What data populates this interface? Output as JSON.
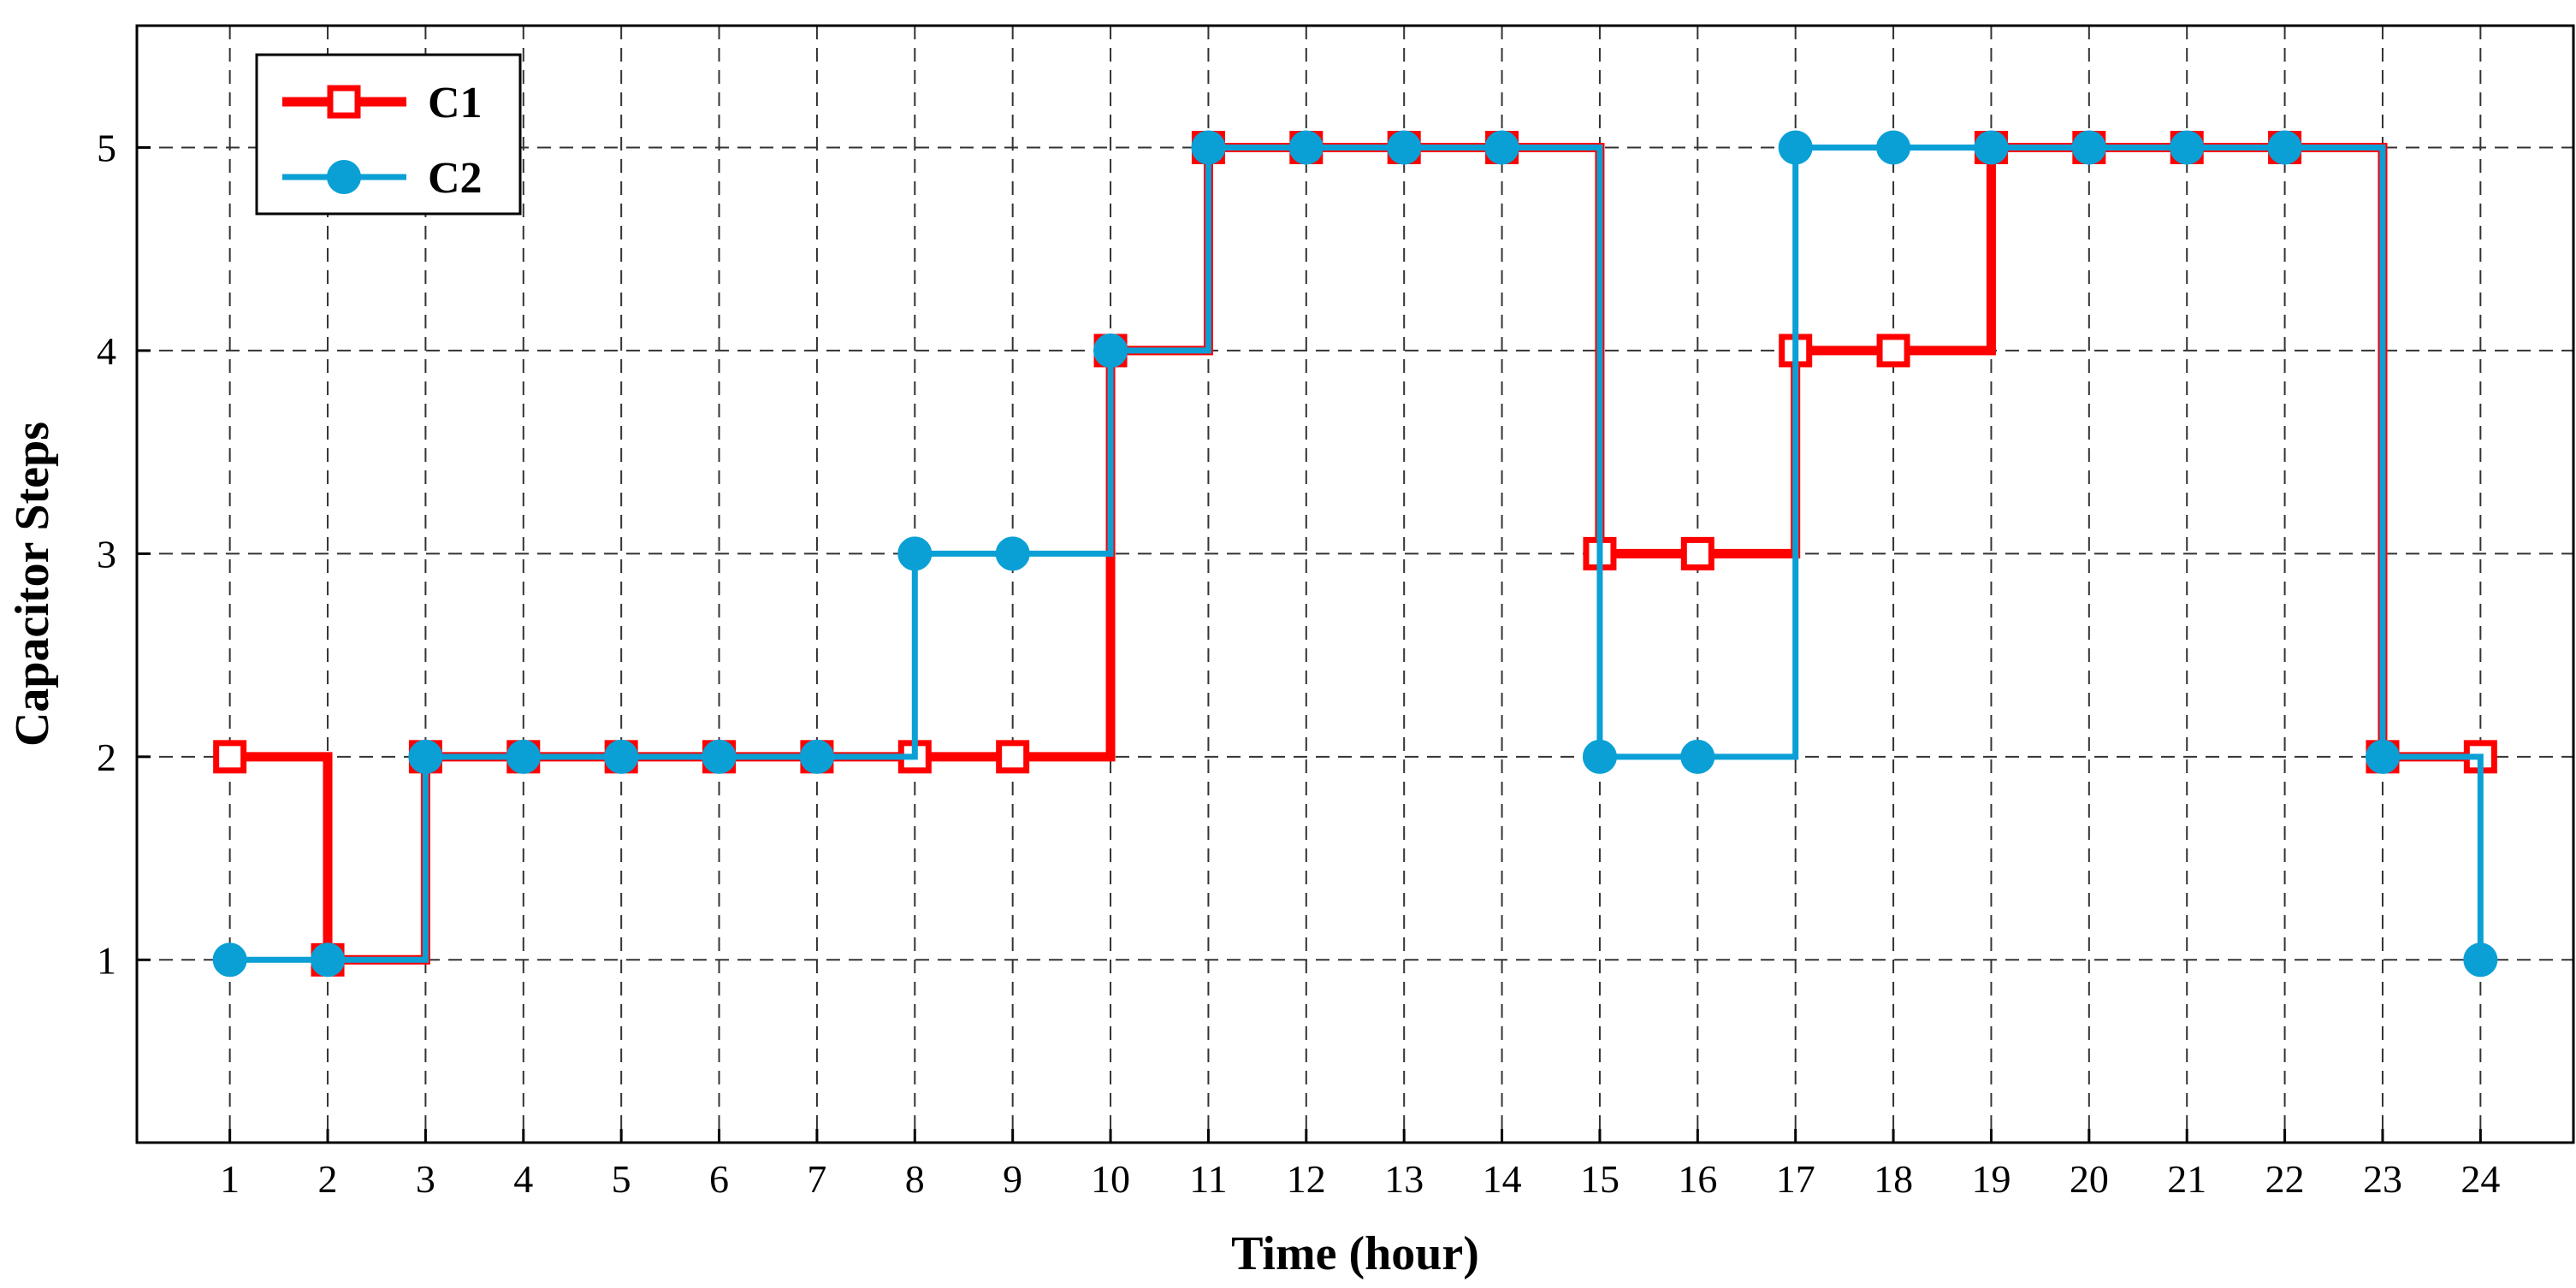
{
  "chart_data": {
    "type": "line",
    "step": true,
    "xlabel": "Time (hour)",
    "ylabel": "Capacitor Steps",
    "x": [
      1,
      2,
      3,
      4,
      5,
      6,
      7,
      8,
      9,
      10,
      11,
      12,
      13,
      14,
      15,
      16,
      17,
      18,
      19,
      20,
      21,
      22,
      23,
      24
    ],
    "xlim": [
      0.05,
      24.95
    ],
    "ylim": [
      0.1,
      5.6
    ],
    "xticks": [
      1,
      2,
      3,
      4,
      5,
      6,
      7,
      8,
      9,
      10,
      11,
      12,
      13,
      14,
      15,
      16,
      17,
      18,
      19,
      20,
      21,
      22,
      23,
      24
    ],
    "yticks": [
      1,
      2,
      3,
      4,
      5
    ],
    "grid": true,
    "legend_position": "top-left",
    "series": [
      {
        "name": "C1",
        "color": "#ff0000",
        "marker": "square",
        "values": [
          2,
          1,
          2,
          2,
          2,
          2,
          2,
          2,
          2,
          4,
          5,
          5,
          5,
          5,
          3,
          3,
          4,
          4,
          5,
          5,
          5,
          5,
          2,
          2
        ]
      },
      {
        "name": "C2",
        "color": "#0aa0d6",
        "marker": "circle",
        "values": [
          1,
          1,
          2,
          2,
          2,
          2,
          2,
          3,
          3,
          4,
          5,
          5,
          5,
          5,
          2,
          2,
          5,
          5,
          5,
          5,
          5,
          5,
          2,
          1
        ]
      }
    ]
  }
}
